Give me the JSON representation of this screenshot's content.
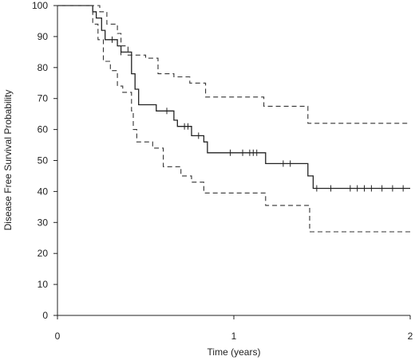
{
  "chart_data": {
    "type": "line",
    "title": "",
    "xlabel": "Time (years)",
    "ylabel": "Disease Free Survival Probability",
    "xlim": [
      0,
      2
    ],
    "ylim": [
      0,
      100
    ],
    "xticks": [
      0,
      1,
      2
    ],
    "yticks": [
      0,
      10,
      20,
      30,
      40,
      50,
      60,
      70,
      80,
      90,
      100
    ],
    "grid": false,
    "legend": "none",
    "series": [
      {
        "style": "solid",
        "color": "#222222",
        "interpolation": "step",
        "points": [
          [
            0,
            100
          ],
          [
            0.2,
            100
          ],
          [
            0.2,
            98
          ],
          [
            0.22,
            98
          ],
          [
            0.22,
            96
          ],
          [
            0.25,
            96
          ],
          [
            0.25,
            92
          ],
          [
            0.27,
            92
          ],
          [
            0.27,
            89
          ],
          [
            0.34,
            89
          ],
          [
            0.34,
            87
          ],
          [
            0.36,
            87
          ],
          [
            0.36,
            85
          ],
          [
            0.42,
            85
          ],
          [
            0.42,
            78
          ],
          [
            0.44,
            78
          ],
          [
            0.44,
            73
          ],
          [
            0.46,
            73
          ],
          [
            0.46,
            68
          ],
          [
            0.56,
            68
          ],
          [
            0.56,
            66
          ],
          [
            0.66,
            66
          ],
          [
            0.66,
            63
          ],
          [
            0.68,
            63
          ],
          [
            0.68,
            61
          ],
          [
            0.76,
            61
          ],
          [
            0.76,
            58
          ],
          [
            0.83,
            58
          ],
          [
            0.83,
            56
          ],
          [
            0.85,
            56
          ],
          [
            0.85,
            52.5
          ],
          [
            1.18,
            52.5
          ],
          [
            1.18,
            49
          ],
          [
            1.42,
            49
          ],
          [
            1.42,
            45
          ],
          [
            1.45,
            45
          ],
          [
            1.45,
            41
          ],
          [
            2,
            41
          ]
        ],
        "censored": [
          [
            0.31,
            89
          ],
          [
            0.36,
            85
          ],
          [
            0.62,
            66
          ],
          [
            0.72,
            61
          ],
          [
            0.74,
            61
          ],
          [
            0.8,
            58
          ],
          [
            0.98,
            52.5
          ],
          [
            1.05,
            52.5
          ],
          [
            1.09,
            52.5
          ],
          [
            1.11,
            52.5
          ],
          [
            1.13,
            52.5
          ],
          [
            1.28,
            49
          ],
          [
            1.32,
            49
          ],
          [
            1.47,
            41
          ],
          [
            1.55,
            41
          ],
          [
            1.66,
            41
          ],
          [
            1.7,
            41
          ],
          [
            1.74,
            41
          ],
          [
            1.78,
            41
          ],
          [
            1.84,
            41
          ],
          [
            1.9,
            41
          ],
          [
            1.96,
            41
          ]
        ]
      },
      {
        "style": "dashed",
        "color": "#333333",
        "interpolation": "step",
        "points": [
          [
            0,
            100
          ],
          [
            0.24,
            100
          ],
          [
            0.24,
            98
          ],
          [
            0.28,
            98
          ],
          [
            0.28,
            94
          ],
          [
            0.34,
            94
          ],
          [
            0.34,
            91
          ],
          [
            0.36,
            91
          ],
          [
            0.36,
            87
          ],
          [
            0.4,
            87
          ],
          [
            0.4,
            84
          ],
          [
            0.5,
            84
          ],
          [
            0.5,
            83
          ],
          [
            0.57,
            83
          ],
          [
            0.57,
            78
          ],
          [
            0.66,
            78
          ],
          [
            0.66,
            77
          ],
          [
            0.75,
            77
          ],
          [
            0.75,
            75
          ],
          [
            0.84,
            75
          ],
          [
            0.84,
            70.5
          ],
          [
            1.17,
            70.5
          ],
          [
            1.17,
            67.5
          ],
          [
            1.42,
            67.5
          ],
          [
            1.42,
            62
          ],
          [
            2,
            62
          ]
        ]
      },
      {
        "style": "dashed",
        "color": "#333333",
        "interpolation": "step",
        "points": [
          [
            0,
            100
          ],
          [
            0.2,
            100
          ],
          [
            0.2,
            94
          ],
          [
            0.23,
            94
          ],
          [
            0.23,
            89
          ],
          [
            0.26,
            89
          ],
          [
            0.26,
            82
          ],
          [
            0.3,
            82
          ],
          [
            0.3,
            79
          ],
          [
            0.34,
            79
          ],
          [
            0.34,
            74
          ],
          [
            0.37,
            74
          ],
          [
            0.37,
            72
          ],
          [
            0.42,
            72
          ],
          [
            0.42,
            66
          ],
          [
            0.43,
            66
          ],
          [
            0.43,
            60
          ],
          [
            0.45,
            60
          ],
          [
            0.45,
            56
          ],
          [
            0.54,
            56
          ],
          [
            0.54,
            54
          ],
          [
            0.6,
            54
          ],
          [
            0.6,
            48
          ],
          [
            0.7,
            48
          ],
          [
            0.7,
            45
          ],
          [
            0.76,
            45
          ],
          [
            0.76,
            43
          ],
          [
            0.83,
            43
          ],
          [
            0.83,
            39.5
          ],
          [
            1.18,
            39.5
          ],
          [
            1.18,
            35.5
          ],
          [
            1.43,
            35.5
          ],
          [
            1.43,
            27
          ],
          [
            2,
            27
          ]
        ]
      }
    ]
  }
}
